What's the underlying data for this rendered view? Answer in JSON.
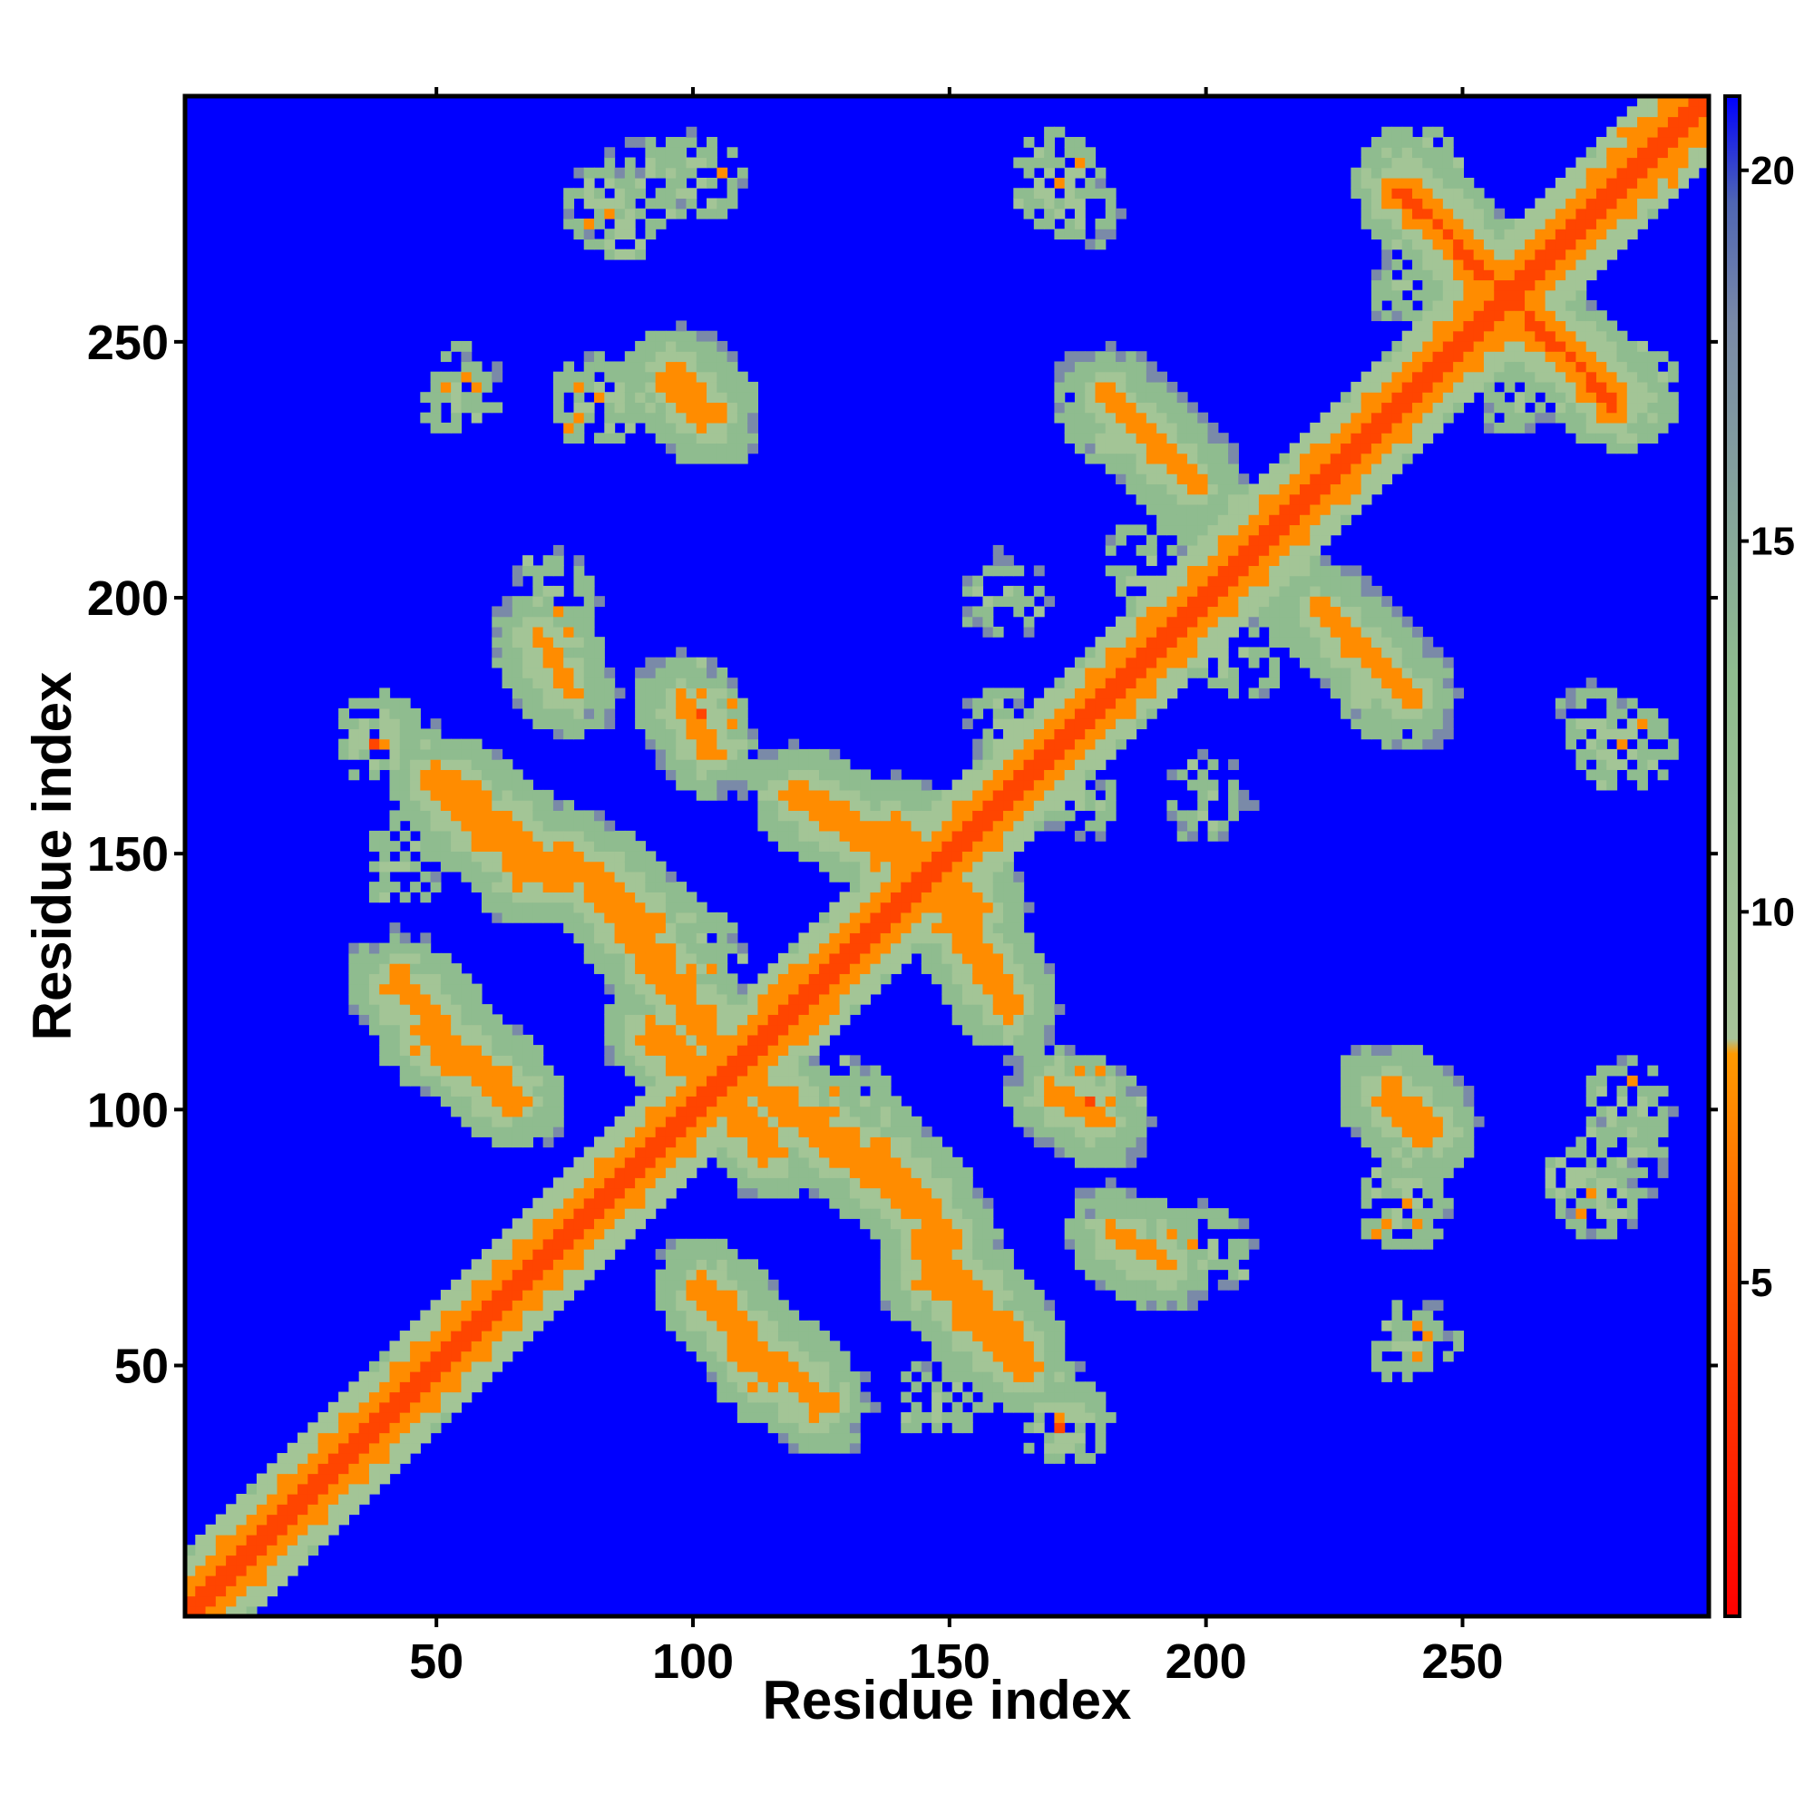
{
  "chart_data": {
    "type": "heatmap",
    "title": "",
    "xlabel": "Residue index",
    "ylabel": "Residue index",
    "xlim": [
      1,
      298
    ],
    "ylim": [
      1,
      298
    ],
    "x_ticks": [
      50,
      100,
      150,
      200,
      250
    ],
    "y_ticks": [
      50,
      100,
      150,
      200,
      250
    ],
    "grid": false,
    "colorbar": {
      "range": [
        0.5,
        21
      ],
      "ticks": [
        5,
        10,
        15,
        20
      ],
      "colors": {
        "close": "#ff0000",
        "near": "#ff8c00",
        "mid": "#8fbc8f",
        "far": "#7a8aa8",
        "background": "#0000ff"
      }
    },
    "contact_bands": [
      {
        "from": [
          1,
          1
        ],
        "to": [
          298,
          298
        ],
        "value": 2
      },
      {
        "from": [
          50,
          165
        ],
        "to": [
          75,
          145
        ],
        "value": 5
      },
      {
        "from": [
          50,
          115
        ],
        "to": [
          65,
          102
        ],
        "value": 5
      },
      {
        "from": [
          42,
          125
        ],
        "to": [
          50,
          118
        ],
        "value": 5
      },
      {
        "from": [
          78,
          148
        ],
        "to": [
          105,
          112
        ],
        "value": 5
      },
      {
        "from": [
          95,
          113
        ],
        "to": [
          115,
          92
        ],
        "value": 5
      },
      {
        "from": [
          120,
          162
        ],
        "to": [
          155,
          140
        ],
        "value": 5
      },
      {
        "from": [
          150,
          140
        ],
        "to": [
          160,
          122
        ],
        "value": 5
      },
      {
        "from": [
          105,
          62
        ],
        "to": [
          115,
          48
        ],
        "value": 5
      },
      {
        "from": [
          135,
          92
        ],
        "to": [
          150,
          75
        ],
        "value": 5
      },
      {
        "from": [
          145,
          68
        ],
        "to": [
          162,
          52
        ],
        "value": 5
      },
      {
        "from": [
          238,
          280
        ],
        "to": [
          280,
          238
        ],
        "value": 4
      },
      {
        "from": [
          95,
          243
        ],
        "to": [
          103,
          235
        ],
        "value": 5
      },
      {
        "from": [
          70,
          192
        ],
        "to": [
          75,
          182
        ],
        "value": 6
      },
      {
        "from": [
          98,
          180
        ],
        "to": [
          103,
          170
        ],
        "value": 6
      },
      {
        "from": [
          236,
          103
        ],
        "to": [
          243,
          97
        ],
        "value": 6
      },
      {
        "from": [
          180,
          240
        ],
        "to": [
          198,
          222
        ],
        "value": 6
      }
    ],
    "contact_blobs": [
      {
        "x": 38,
        "y": 172,
        "value": 6
      },
      {
        "x": 42,
        "y": 148,
        "value": 8
      },
      {
        "x": 72,
        "y": 200,
        "value": 8
      },
      {
        "x": 100,
        "y": 178,
        "value": 7
      },
      {
        "x": 120,
        "y": 45,
        "value": 7
      },
      {
        "x": 172,
        "y": 38,
        "value": 6
      },
      {
        "x": 175,
        "y": 102,
        "value": 7
      },
      {
        "x": 190,
        "y": 73,
        "value": 7
      },
      {
        "x": 207,
        "y": 188,
        "value": 8
      },
      {
        "x": 235,
        "y": 180,
        "value": 7
      },
      {
        "x": 238,
        "y": 80,
        "value": 7
      },
      {
        "x": 240,
        "y": 55,
        "value": 8
      },
      {
        "x": 276,
        "y": 175,
        "value": 8
      },
      {
        "x": 282,
        "y": 100,
        "value": 7
      },
      {
        "x": 278,
        "y": 82,
        "value": 8
      },
      {
        "x": 170,
        "y": 282,
        "value": 6
      },
      {
        "x": 93,
        "y": 282,
        "value": 8
      },
      {
        "x": 84,
        "y": 275,
        "value": 6
      },
      {
        "x": 240,
        "y": 285,
        "value": 7
      },
      {
        "x": 285,
        "y": 285,
        "value": 7
      },
      {
        "x": 80,
        "y": 238,
        "value": 7
      },
      {
        "x": 205,
        "y": 215,
        "value": 7
      },
      {
        "x": 200,
        "y": 160,
        "value": 9
      },
      {
        "x": 128,
        "y": 128,
        "value": 8
      },
      {
        "x": 100,
        "y": 130,
        "value": 8
      },
      {
        "x": 130,
        "y": 100,
        "value": 8
      },
      {
        "x": 85,
        "y": 85,
        "value": 8
      },
      {
        "x": 60,
        "y": 60,
        "value": 8
      },
      {
        "x": 160,
        "y": 175,
        "value": 9
      },
      {
        "x": 260,
        "y": 240,
        "value": 9
      }
    ]
  }
}
